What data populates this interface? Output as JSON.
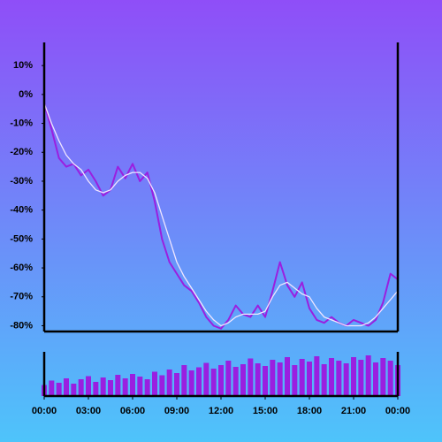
{
  "chart_data": {
    "type": "line",
    "x": [
      0,
      0.5,
      1,
      1.5,
      2,
      2.5,
      3,
      3.5,
      4,
      4.5,
      5,
      5.5,
      6,
      6.5,
      7,
      7.5,
      8,
      8.5,
      9,
      9.5,
      10,
      10.5,
      11,
      11.5,
      12,
      12.5,
      13,
      13.5,
      14,
      14.5,
      15,
      15.5,
      16,
      16.5,
      17,
      17.5,
      18,
      18.5,
      19,
      19.5,
      20,
      20.5,
      21,
      21.5,
      22,
      22.5,
      23,
      23.5,
      24
    ],
    "xlim": [
      0,
      24
    ],
    "xticks": [
      {
        "value": 0,
        "label": "00:00"
      },
      {
        "value": 3,
        "label": "03:00"
      },
      {
        "value": 6,
        "label": "06:00"
      },
      {
        "value": 9,
        "label": "09:00"
      },
      {
        "value": 12,
        "label": "12:00"
      },
      {
        "value": 15,
        "label": "15:00"
      },
      {
        "value": 18,
        "label": "18:00"
      },
      {
        "value": 21,
        "label": "21:00"
      },
      {
        "value": 24,
        "label": "00:00"
      }
    ],
    "ylim": [
      -82,
      18
    ],
    "yticks": [
      {
        "value": 10,
        "label": "10%"
      },
      {
        "value": 0,
        "label": "0%"
      },
      {
        "value": -10,
        "label": "-10%"
      },
      {
        "value": -20,
        "label": "-20%"
      },
      {
        "value": -30,
        "label": "-30%"
      },
      {
        "value": -40,
        "label": "-40%"
      },
      {
        "value": -50,
        "label": "-50%"
      },
      {
        "value": -60,
        "label": "-60%"
      },
      {
        "value": -70,
        "label": "-70%"
      },
      {
        "value": -80,
        "label": "-80%"
      }
    ],
    "series": [
      {
        "color": "#9a1fe0",
        "values": [
          -3,
          -12,
          -22,
          -25,
          -24,
          -28,
          -26,
          -30,
          -35,
          -33,
          -25,
          -29,
          -24,
          -30,
          -27,
          -37,
          -50,
          -58,
          -62,
          -66,
          -68,
          -72,
          -77,
          -80,
          -81,
          -78,
          -73,
          -76,
          -77,
          -73,
          -77,
          -68,
          -58,
          -66,
          -70,
          -65,
          -74,
          -78,
          -79,
          -77,
          -79,
          -80,
          -78,
          -79,
          -80,
          -78,
          -72,
          -62,
          -64
        ]
      },
      {
        "color": "#f0e6ff",
        "values": [
          -3,
          -10,
          -16,
          -21,
          -24,
          -26,
          -30,
          -33,
          -34,
          -33,
          -30,
          -28,
          -27,
          -27,
          -29,
          -34,
          -42,
          -50,
          -58,
          -63,
          -67,
          -71,
          -75,
          -78,
          -80,
          -79,
          -77,
          -76,
          -76,
          -76,
          -75,
          -70,
          -66,
          -65,
          -67,
          -69,
          -70,
          -74,
          -77,
          -78,
          -79,
          -80,
          -80,
          -80,
          -79,
          -77,
          -74,
          -71,
          -68
        ]
      }
    ],
    "volume": {
      "color": "#9a1fe0",
      "ylim": [
        0,
        100
      ],
      "values": [
        25,
        35,
        30,
        40,
        28,
        38,
        45,
        32,
        42,
        36,
        48,
        40,
        50,
        44,
        38,
        55,
        47,
        60,
        52,
        70,
        58,
        65,
        75,
        62,
        70,
        80,
        66,
        72,
        85,
        74,
        68,
        82,
        76,
        88,
        70,
        84,
        78,
        90,
        72,
        86,
        80,
        74,
        88,
        82,
        92,
        76,
        86,
        80,
        70
      ]
    }
  }
}
